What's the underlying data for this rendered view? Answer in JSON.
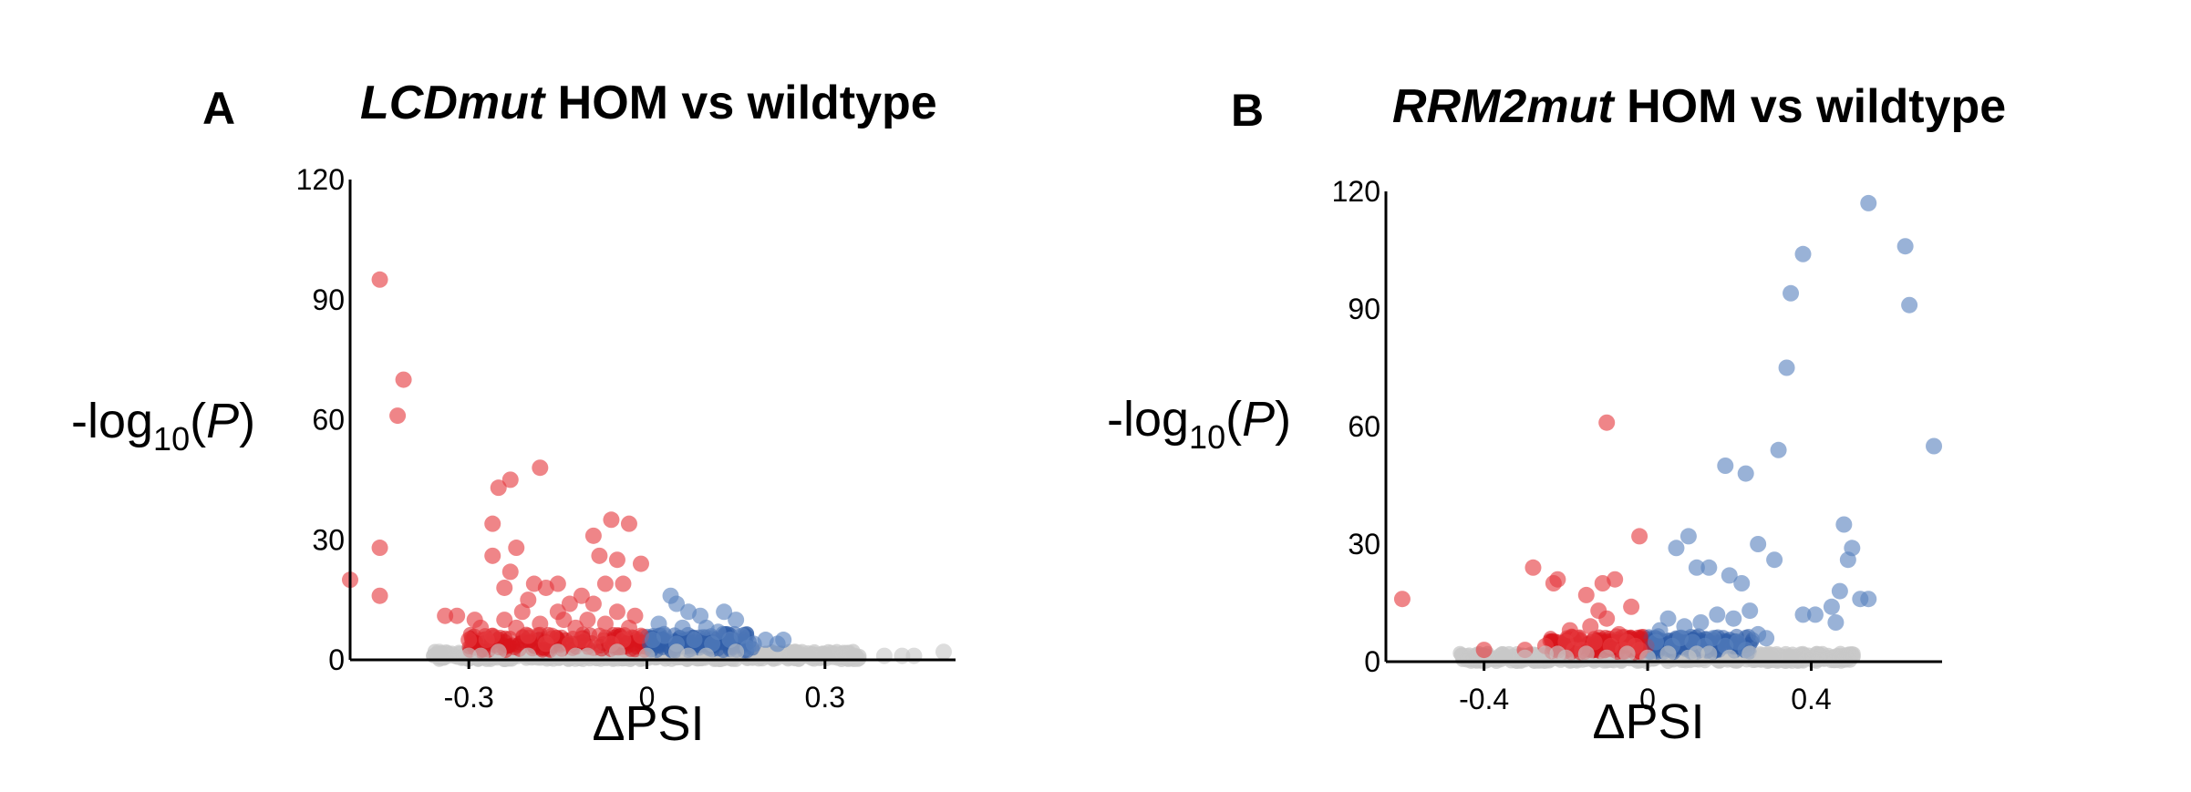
{
  "colors": {
    "down": "#e53a3f",
    "up": "#5a82bf",
    "down_dense": "#d9141b",
    "up_dense": "#2f5ca8",
    "ns": "#c8c8c8"
  },
  "chart_data": [
    {
      "type": "scatter",
      "panel_label": "A",
      "title_italic": "LCDmut",
      "title_rest": " HOM vs wildtype",
      "xlabel": "ΔPSI",
      "ylabel_prefix": "-log",
      "ylabel_sub": "10",
      "ylabel_open": "(",
      "ylabel_var": "P",
      "ylabel_close": ")",
      "xlim": [
        -0.5,
        0.52
      ],
      "ylim": [
        0,
        120
      ],
      "xticks": [
        -0.3,
        0,
        0.3
      ],
      "xtick_labels": [
        "-0.3",
        "0",
        "0.3"
      ],
      "yticks": [
        0,
        30,
        60,
        90,
        120
      ],
      "ytick_labels": [
        "0",
        "30",
        "60",
        "90",
        "120"
      ],
      "series": [
        {
          "color_key": "down",
          "points": [
            [
              -0.45,
              95
            ],
            [
              -0.41,
              70
            ],
            [
              -0.42,
              61
            ],
            [
              -0.18,
              48
            ],
            [
              -0.23,
              45
            ],
            [
              -0.25,
              43
            ],
            [
              -0.26,
              34
            ],
            [
              -0.06,
              35
            ],
            [
              -0.03,
              34
            ],
            [
              -0.09,
              31
            ],
            [
              -0.22,
              28
            ],
            [
              -0.26,
              26
            ],
            [
              -0.05,
              25
            ],
            [
              -0.08,
              26
            ],
            [
              -0.01,
              24
            ],
            [
              -0.45,
              28
            ],
            [
              -0.5,
              20
            ],
            [
              -0.45,
              16
            ],
            [
              -0.23,
              22
            ],
            [
              -0.24,
              18
            ],
            [
              -0.19,
              19
            ],
            [
              -0.17,
              18
            ],
            [
              -0.15,
              19
            ],
            [
              -0.07,
              19
            ],
            [
              -0.04,
              19
            ],
            [
              -0.11,
              16
            ],
            [
              -0.09,
              14
            ],
            [
              -0.13,
              14
            ],
            [
              -0.2,
              15
            ],
            [
              -0.34,
              11
            ],
            [
              -0.32,
              11
            ],
            [
              -0.29,
              10
            ],
            [
              -0.28,
              8
            ],
            [
              -0.26,
              6
            ],
            [
              -0.3,
              5
            ],
            [
              -0.21,
              12
            ],
            [
              -0.15,
              12
            ],
            [
              -0.05,
              12
            ],
            [
              -0.02,
              11
            ],
            [
              -0.18,
              9
            ],
            [
              -0.1,
              10
            ],
            [
              -0.12,
              8
            ],
            [
              -0.07,
              9
            ],
            [
              -0.16,
              6
            ],
            [
              -0.24,
              10
            ],
            [
              -0.22,
              8
            ],
            [
              -0.14,
              10
            ],
            [
              -0.03,
              8
            ],
            [
              -0.01,
              6
            ],
            [
              -0.2,
              6
            ],
            [
              -0.08,
              6
            ],
            [
              -0.11,
              5
            ],
            [
              -0.04,
              5
            ],
            [
              -0.27,
              5
            ],
            [
              -0.13,
              4
            ],
            [
              -0.06,
              4
            ],
            [
              -0.17,
              4
            ],
            [
              -0.09,
              3
            ]
          ]
        },
        {
          "color_key": "up",
          "points": [
            [
              0.04,
              16
            ],
            [
              0.05,
              14
            ],
            [
              0.07,
              12
            ],
            [
              0.09,
              11
            ],
            [
              0.13,
              12
            ],
            [
              0.15,
              10
            ],
            [
              0.02,
              9
            ],
            [
              0.06,
              8
            ],
            [
              0.1,
              8
            ],
            [
              0.12,
              7
            ],
            [
              0.16,
              6
            ],
            [
              0.2,
              5
            ],
            [
              0.22,
              4
            ],
            [
              0.14,
              5
            ],
            [
              0.08,
              5
            ],
            [
              0.03,
              6
            ],
            [
              0.18,
              4
            ],
            [
              0.11,
              4
            ],
            [
              0.01,
              5
            ],
            [
              0.05,
              4
            ],
            [
              0.23,
              5
            ],
            [
              0.17,
              3
            ]
          ]
        },
        {
          "color_key": "ns",
          "points": [
            [
              -0.35,
              2
            ],
            [
              -0.3,
              1
            ],
            [
              -0.25,
              2
            ],
            [
              -0.2,
              1
            ],
            [
              -0.15,
              2
            ],
            [
              -0.1,
              1
            ],
            [
              -0.05,
              2
            ],
            [
              0,
              1
            ],
            [
              0.05,
              2
            ],
            [
              0.1,
              1
            ],
            [
              0.15,
              2
            ],
            [
              0.2,
              1
            ],
            [
              0.25,
              2
            ],
            [
              0.3,
              1
            ],
            [
              0.35,
              1
            ],
            [
              0.4,
              1
            ],
            [
              0.45,
              1
            ],
            [
              0.5,
              2
            ],
            [
              -0.28,
              1
            ],
            [
              -0.12,
              1
            ],
            [
              0.07,
              1
            ],
            [
              0.27,
              1
            ],
            [
              0.43,
              1
            ]
          ]
        }
      ]
    },
    {
      "type": "scatter",
      "panel_label": "B",
      "title_italic": "RRM2mut",
      "title_rest": " HOM vs wildtype",
      "xlabel": "ΔPSI",
      "ylabel_prefix": "-log",
      "ylabel_sub": "10",
      "ylabel_open": "(",
      "ylabel_var": "P",
      "ylabel_close": ")",
      "xlim": [
        -0.64,
        0.72
      ],
      "ylim": [
        0,
        120
      ],
      "xticks": [
        -0.4,
        0,
        0.4
      ],
      "xtick_labels": [
        "-0.4",
        "0",
        "0.4"
      ],
      "yticks": [
        0,
        30,
        60,
        90,
        120
      ],
      "ytick_labels": [
        "0",
        "30",
        "60",
        "90",
        "120"
      ],
      "series": [
        {
          "color_key": "down",
          "points": [
            [
              -0.1,
              61
            ],
            [
              -0.02,
              32
            ],
            [
              -0.04,
              14
            ],
            [
              -0.28,
              24
            ],
            [
              -0.22,
              21
            ],
            [
              -0.23,
              20
            ],
            [
              -0.11,
              20
            ],
            [
              -0.08,
              21
            ],
            [
              -0.15,
              17
            ],
            [
              -0.12,
              13
            ],
            [
              -0.1,
              11
            ],
            [
              -0.6,
              16
            ],
            [
              -0.4,
              3
            ],
            [
              -0.3,
              3
            ],
            [
              -0.19,
              8
            ],
            [
              -0.17,
              6
            ],
            [
              -0.14,
              9
            ],
            [
              -0.07,
              7
            ],
            [
              -0.05,
              5
            ],
            [
              -0.2,
              5
            ],
            [
              -0.25,
              4
            ],
            [
              -0.13,
              5
            ],
            [
              -0.09,
              4
            ],
            [
              -0.03,
              4
            ],
            [
              -0.16,
              3
            ],
            [
              -0.02,
              3
            ],
            [
              -0.18,
              3
            ],
            [
              -0.06,
              3
            ]
          ]
        },
        {
          "color_key": "up",
          "points": [
            [
              0.54,
              117
            ],
            [
              0.63,
              106
            ],
            [
              0.38,
              104
            ],
            [
              0.35,
              94
            ],
            [
              0.64,
              91
            ],
            [
              0.34,
              75
            ],
            [
              0.7,
              55
            ],
            [
              0.32,
              54
            ],
            [
              0.19,
              50
            ],
            [
              0.24,
              48
            ],
            [
              0.48,
              35
            ],
            [
              0.5,
              29
            ],
            [
              0.49,
              26
            ],
            [
              0.07,
              29
            ],
            [
              0.1,
              32
            ],
            [
              0.27,
              30
            ],
            [
              0.31,
              26
            ],
            [
              0.15,
              24
            ],
            [
              0.12,
              24
            ],
            [
              0.2,
              22
            ],
            [
              0.23,
              20
            ],
            [
              0.47,
              18
            ],
            [
              0.45,
              14
            ],
            [
              0.46,
              10
            ],
            [
              0.52,
              16
            ],
            [
              0.54,
              16
            ],
            [
              0.38,
              12
            ],
            [
              0.41,
              12
            ],
            [
              0.25,
              13
            ],
            [
              0.21,
              11
            ],
            [
              0.17,
              12
            ],
            [
              0.13,
              10
            ],
            [
              0.09,
              9
            ],
            [
              0.05,
              11
            ],
            [
              0.03,
              8
            ],
            [
              0.08,
              6
            ],
            [
              0.11,
              5
            ],
            [
              0.16,
              6
            ],
            [
              0.19,
              4
            ],
            [
              0.22,
              5
            ],
            [
              0.27,
              7
            ],
            [
              0.29,
              6
            ],
            [
              0.02,
              5
            ],
            [
              0.06,
              4
            ],
            [
              0.14,
              4
            ],
            [
              0.24,
              3
            ]
          ]
        },
        {
          "color_key": "ns",
          "points": [
            [
              -0.3,
              1
            ],
            [
              -0.25,
              2
            ],
            [
              -0.2,
              1
            ],
            [
              -0.15,
              2
            ],
            [
              -0.1,
              1
            ],
            [
              -0.05,
              2
            ],
            [
              0,
              1
            ],
            [
              0.05,
              2
            ],
            [
              0.1,
              1
            ],
            [
              0.15,
              2
            ],
            [
              0.2,
              1
            ],
            [
              0.25,
              2
            ],
            [
              0.3,
              1
            ],
            [
              0.35,
              1
            ],
            [
              -0.35,
              1
            ],
            [
              -0.22,
              2
            ],
            [
              0.12,
              2
            ],
            [
              0.28,
              1
            ]
          ]
        }
      ]
    }
  ]
}
